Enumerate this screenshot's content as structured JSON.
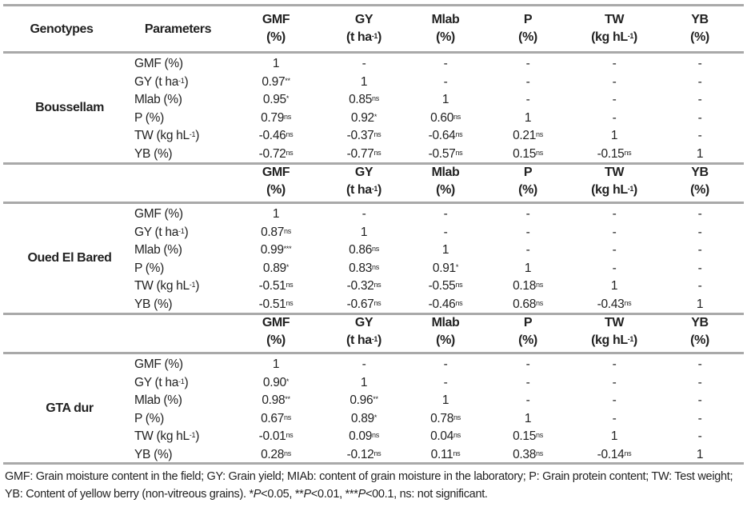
{
  "header": {
    "genotypes_label": "Genotypes",
    "parameters_label": "Parameters",
    "columns": [
      {
        "name": "GMF",
        "unit": "(%)",
        "unit_sup": "",
        "unit_end": ""
      },
      {
        "name": "GY",
        "unit": "(t ha",
        "unit_sup": "-1",
        "unit_end": ")"
      },
      {
        "name": "Mlab",
        "unit": "(%)",
        "unit_sup": "",
        "unit_end": ""
      },
      {
        "name": "P",
        "unit": "(%)",
        "unit_sup": "",
        "unit_end": ""
      },
      {
        "name": "TW",
        "unit": "(kg hL",
        "unit_sup": "-1",
        "unit_end": ")"
      },
      {
        "name": "YB",
        "unit": "(%)",
        "unit_sup": "",
        "unit_end": ""
      }
    ]
  },
  "params": [
    {
      "text": "GMF (%)",
      "sup": "",
      "end": ""
    },
    {
      "text": "GY (t ha",
      "sup": "-1",
      "end": ")"
    },
    {
      "text": "Mlab (%)",
      "sup": "",
      "end": ""
    },
    {
      "text": "P (%)",
      "sup": "",
      "end": ""
    },
    {
      "text": "TW (kg hL",
      "sup": "-1",
      "end": ")"
    },
    {
      "text": "YB (%)",
      "sup": "",
      "end": ""
    }
  ],
  "blocks": [
    {
      "genotype": "Boussellam",
      "rows": [
        [
          [
            "1",
            ""
          ],
          [
            "-",
            ""
          ],
          [
            "-",
            ""
          ],
          [
            "-",
            ""
          ],
          [
            "-",
            ""
          ],
          [
            "-",
            ""
          ]
        ],
        [
          [
            "0.97",
            "**"
          ],
          [
            "1",
            ""
          ],
          [
            "-",
            ""
          ],
          [
            "-",
            ""
          ],
          [
            "-",
            ""
          ],
          [
            "-",
            ""
          ]
        ],
        [
          [
            "0.95",
            "*"
          ],
          [
            "0.85",
            "ns"
          ],
          [
            "1",
            ""
          ],
          [
            "-",
            ""
          ],
          [
            "-",
            ""
          ],
          [
            "-",
            ""
          ]
        ],
        [
          [
            "0.79",
            "ns"
          ],
          [
            "0.92",
            "*"
          ],
          [
            "0.60",
            "ns"
          ],
          [
            "1",
            ""
          ],
          [
            "-",
            ""
          ],
          [
            "-",
            ""
          ]
        ],
        [
          [
            "-0.46",
            "ns"
          ],
          [
            "-0.37",
            "ns"
          ],
          [
            "-0.64",
            "ns"
          ],
          [
            "0.21",
            "ns"
          ],
          [
            "1",
            ""
          ],
          [
            "-",
            ""
          ]
        ],
        [
          [
            "-0.72",
            "ns"
          ],
          [
            "-0.77",
            "ns"
          ],
          [
            "-0.57",
            "ns"
          ],
          [
            "0.15",
            "ns"
          ],
          [
            "-0.15",
            "ns"
          ],
          [
            "1",
            ""
          ]
        ]
      ]
    },
    {
      "genotype": "Oued El Bared",
      "rows": [
        [
          [
            "1",
            ""
          ],
          [
            "-",
            ""
          ],
          [
            "-",
            ""
          ],
          [
            "-",
            ""
          ],
          [
            "-",
            ""
          ],
          [
            "-",
            ""
          ]
        ],
        [
          [
            "0.87",
            "ns"
          ],
          [
            "1",
            ""
          ],
          [
            "-",
            ""
          ],
          [
            "-",
            ""
          ],
          [
            "-",
            ""
          ],
          [
            "-",
            ""
          ]
        ],
        [
          [
            "0.99",
            "***"
          ],
          [
            "0.86",
            "ns"
          ],
          [
            "1",
            ""
          ],
          [
            "-",
            ""
          ],
          [
            "-",
            ""
          ],
          [
            "-",
            ""
          ]
        ],
        [
          [
            "0.89",
            "*"
          ],
          [
            "0.83",
            "ns"
          ],
          [
            "0.91",
            "*"
          ],
          [
            "1",
            ""
          ],
          [
            "-",
            ""
          ],
          [
            "-",
            ""
          ]
        ],
        [
          [
            "-0.51",
            "ns"
          ],
          [
            "-0.32",
            "ns"
          ],
          [
            "-0.55",
            "ns"
          ],
          [
            "0.18",
            "ns"
          ],
          [
            "1",
            ""
          ],
          [
            "-",
            ""
          ]
        ],
        [
          [
            "-0.51",
            "ns"
          ],
          [
            "-0.67",
            "ns"
          ],
          [
            "-0.46",
            "ns"
          ],
          [
            "0.68",
            "ns"
          ],
          [
            "-0.43",
            "ns"
          ],
          [
            "1",
            ""
          ]
        ]
      ]
    },
    {
      "genotype": "GTA dur",
      "rows": [
        [
          [
            "1",
            ""
          ],
          [
            "-",
            ""
          ],
          [
            "-",
            ""
          ],
          [
            "-",
            ""
          ],
          [
            "-",
            ""
          ],
          [
            "-",
            ""
          ]
        ],
        [
          [
            "0.90",
            "*"
          ],
          [
            "1",
            ""
          ],
          [
            "-",
            ""
          ],
          [
            "-",
            ""
          ],
          [
            "-",
            ""
          ],
          [
            "-",
            ""
          ]
        ],
        [
          [
            "0.98",
            "**"
          ],
          [
            "0.96",
            "**"
          ],
          [
            "1",
            ""
          ],
          [
            "-",
            ""
          ],
          [
            "-",
            ""
          ],
          [
            "-",
            ""
          ]
        ],
        [
          [
            "0.67",
            "ns"
          ],
          [
            "0.89",
            "*"
          ],
          [
            "0.78",
            "ns"
          ],
          [
            "1",
            ""
          ],
          [
            "-",
            ""
          ],
          [
            "-",
            ""
          ]
        ],
        [
          [
            "-0.01",
            "ns"
          ],
          [
            "0.09",
            "ns"
          ],
          [
            "0.04",
            "ns"
          ],
          [
            "0.15",
            "ns"
          ],
          [
            "1",
            ""
          ],
          [
            "-",
            ""
          ]
        ],
        [
          [
            "0.28",
            "ns"
          ],
          [
            "-0.12",
            "ns"
          ],
          [
            "0.11",
            "ns"
          ],
          [
            "0.38",
            "ns"
          ],
          [
            "-0.14",
            "ns"
          ],
          [
            "1",
            ""
          ]
        ]
      ]
    }
  ],
  "footnote": {
    "text": "GMF: Grain moisture content in the field; GY: Grain yield; MIAb: content of grain moisture in the laboratory; P: Grain protein content; TW: Test weight; YB: Content of yellow berry (non-vitreous grains). *",
    "p1": "P",
    "t1": "<0.05, **",
    "p2": "P",
    "t2": "<0.01, ***",
    "p3": "P",
    "t3": "<00.1, ns: not significant."
  },
  "colors": {
    "rule": "#a9a9a9",
    "text": "#222222"
  }
}
